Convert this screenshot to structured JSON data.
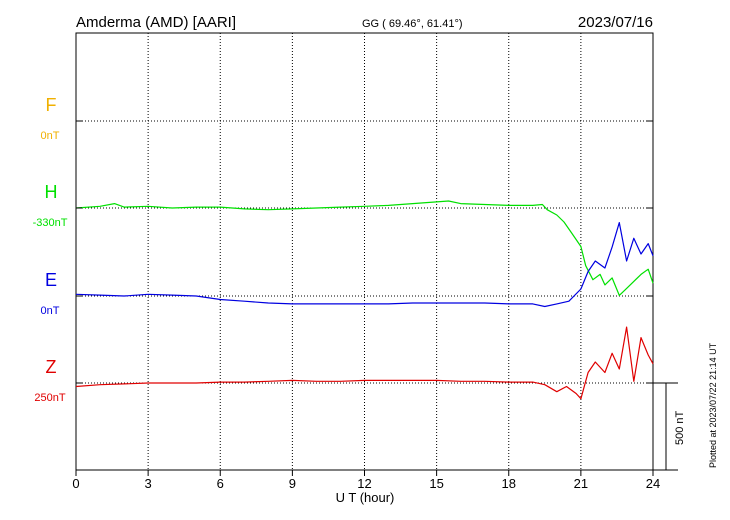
{
  "header": {
    "station": "Amderma (AMD)  [AARI]",
    "coords": "GG ( 69.46°,  61.41°)",
    "date": "2023/07/16"
  },
  "footer": {
    "plotted": "Plotted at 2023/07/22 21:14 UT"
  },
  "colors": {
    "F": "#f0b000",
    "H": "#00e000",
    "E": "#0000e0",
    "Z": "#e00000",
    "grid": "#000000"
  },
  "chart_data": {
    "type": "line",
    "title": "Amderma (AMD)  [AARI]",
    "xlabel": "U T (hour)",
    "x_ticks": [
      0,
      3,
      6,
      9,
      12,
      15,
      18,
      21,
      24
    ],
    "xlim": [
      0,
      24
    ],
    "scale_bar": {
      "label": "500 nT",
      "value_nT": 500
    },
    "units_per_division_nT": 500,
    "series": [
      {
        "name": "F",
        "baseline_label": "0nT",
        "values": []
      },
      {
        "name": "H",
        "baseline_label": "-330nT",
        "x": [
          0,
          1,
          1.6,
          2,
          3,
          4,
          5,
          6,
          7,
          8,
          9,
          10,
          11,
          12,
          13,
          14,
          15,
          15.5,
          16,
          17,
          18,
          19,
          19.4,
          19.6,
          20,
          20.3,
          20.6,
          21,
          21.2,
          21.5,
          21.8,
          22,
          22.3,
          22.6,
          22.9,
          23.2,
          23.5,
          23.8,
          24
        ],
        "values": [
          0,
          10,
          25,
          5,
          10,
          0,
          5,
          5,
          -5,
          -10,
          -5,
          0,
          5,
          10,
          15,
          25,
          35,
          40,
          25,
          20,
          15,
          15,
          20,
          -10,
          -40,
          -80,
          -140,
          -220,
          -330,
          -410,
          -380,
          -440,
          -400,
          -500,
          -460,
          -420,
          -380,
          -350,
          -430
        ]
      },
      {
        "name": "E",
        "baseline_label": "0nT",
        "x": [
          0,
          1,
          2,
          3,
          4,
          5,
          6,
          7,
          8,
          9,
          10,
          11,
          12,
          13,
          14,
          15,
          16,
          17,
          18,
          19,
          19.5,
          20,
          20.5,
          21,
          21.3,
          21.6,
          22,
          22.3,
          22.6,
          22.9,
          23.2,
          23.5,
          23.8,
          24
        ],
        "values": [
          10,
          5,
          0,
          10,
          5,
          0,
          -20,
          -30,
          -40,
          -45,
          -45,
          -45,
          -45,
          -45,
          -40,
          -40,
          -40,
          -40,
          -45,
          -45,
          -60,
          -45,
          -30,
          40,
          140,
          200,
          160,
          280,
          420,
          200,
          330,
          240,
          300,
          230
        ]
      },
      {
        "name": "Z",
        "baseline_label": "250nT",
        "x": [
          0,
          1,
          2,
          3,
          4,
          5,
          6,
          7,
          8,
          9,
          10,
          11,
          12,
          13,
          14,
          15,
          16,
          17,
          18,
          19,
          19.5,
          20,
          20.4,
          20.8,
          21,
          21.3,
          21.6,
          22,
          22.3,
          22.6,
          22.9,
          23.2,
          23.5,
          23.8,
          24
        ],
        "values": [
          -20,
          -10,
          -5,
          0,
          0,
          0,
          5,
          5,
          10,
          15,
          10,
          10,
          15,
          15,
          15,
          15,
          10,
          10,
          5,
          5,
          -10,
          -50,
          -20,
          -60,
          -90,
          60,
          120,
          60,
          170,
          80,
          320,
          10,
          260,
          160,
          110
        ]
      }
    ]
  }
}
